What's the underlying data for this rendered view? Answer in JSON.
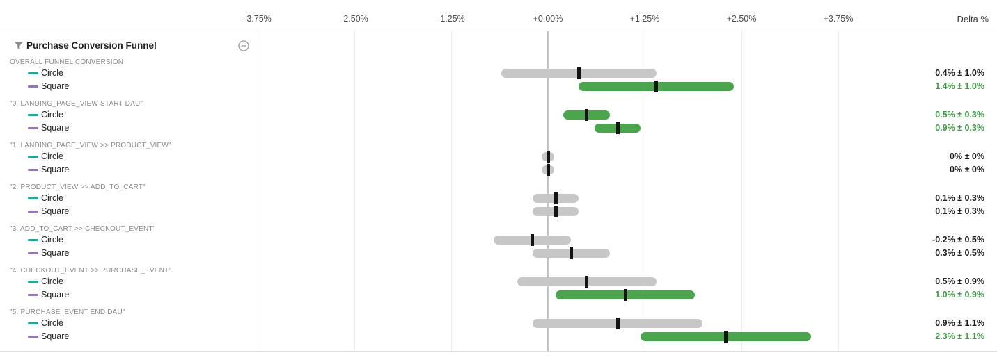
{
  "header": {
    "title": "Purchase Conversion Funnel",
    "filter_icon": "funnel-icon",
    "collapse_icon": "minus-circle-icon"
  },
  "axis": {
    "unit_label": "Delta %",
    "tick_labels": [
      "-3.75%",
      "-2.50%",
      "-1.25%",
      "+0.00%",
      "+1.25%",
      "+2.50%",
      "+3.75%"
    ],
    "tick_values": [
      -3.75,
      -2.5,
      -1.25,
      0,
      1.25,
      2.5,
      3.75
    ]
  },
  "colors": {
    "bar_significant": "#4aa54c",
    "bar_not_significant": "#c7c7c7",
    "point_tick": "#141414",
    "value_text": "#1c1c1c",
    "value_significant_text": "#3f9e44",
    "circle_swatch": "#1fa894",
    "square_swatch": "#9673c1",
    "gridline": "#ececec",
    "zero_line": "#c3c3c3"
  },
  "chart_data": {
    "type": "bar",
    "subtype": "horizontal_confidence_interval",
    "title": "Purchase Conversion Funnel",
    "xlabel": "Delta %",
    "xlim": [
      -3.75,
      3.75
    ],
    "x_tick_values": [
      -3.75,
      -2.5,
      -1.25,
      0,
      1.25,
      2.5,
      3.75
    ],
    "legend_position": "left",
    "grid": true,
    "groups": [
      {
        "metric": "OVERALL FUNNEL CONVERSION",
        "rows": [
          {
            "variant": "Circle",
            "delta_pct": 0.4,
            "error_pct": 1.0,
            "label": "0.4% ± 1.0%",
            "significant": false
          },
          {
            "variant": "Square",
            "delta_pct": 1.4,
            "error_pct": 1.0,
            "label": "1.4% ± 1.0%",
            "significant": true
          }
        ]
      },
      {
        "metric": "\"0. LANDING_PAGE_VIEW START DAU\"",
        "rows": [
          {
            "variant": "Circle",
            "delta_pct": 0.5,
            "error_pct": 0.3,
            "label": "0.5% ± 0.3%",
            "significant": true
          },
          {
            "variant": "Square",
            "delta_pct": 0.9,
            "error_pct": 0.3,
            "label": "0.9% ± 0.3%",
            "significant": true
          }
        ]
      },
      {
        "metric": "\"1. LANDING_PAGE_VIEW >> PRODUCT_VIEW\"",
        "rows": [
          {
            "variant": "Circle",
            "delta_pct": 0,
            "error_pct": 0,
            "label": "0% ± 0%",
            "significant": false
          },
          {
            "variant": "Square",
            "delta_pct": 0,
            "error_pct": 0,
            "label": "0% ± 0%",
            "significant": false
          }
        ]
      },
      {
        "metric": "\"2. PRODUCT_VIEW >> ADD_TO_CART\"",
        "rows": [
          {
            "variant": "Circle",
            "delta_pct": 0.1,
            "error_pct": 0.3,
            "label": "0.1% ± 0.3%",
            "significant": false
          },
          {
            "variant": "Square",
            "delta_pct": 0.1,
            "error_pct": 0.3,
            "label": "0.1% ± 0.3%",
            "significant": false
          }
        ]
      },
      {
        "metric": "\"3. ADD_TO_CART >> CHECKOUT_EVENT\"",
        "rows": [
          {
            "variant": "Circle",
            "delta_pct": -0.2,
            "error_pct": 0.5,
            "label": "-0.2% ± 0.5%",
            "significant": false
          },
          {
            "variant": "Square",
            "delta_pct": 0.3,
            "error_pct": 0.5,
            "label": "0.3% ± 0.5%",
            "significant": false
          }
        ]
      },
      {
        "metric": "\"4. CHECKOUT_EVENT >> PURCHASE_EVENT\"",
        "rows": [
          {
            "variant": "Circle",
            "delta_pct": 0.5,
            "error_pct": 0.9,
            "label": "0.5% ± 0.9%",
            "significant": false
          },
          {
            "variant": "Square",
            "delta_pct": 1.0,
            "error_pct": 0.9,
            "label": "1.0% ± 0.9%",
            "significant": true
          }
        ]
      },
      {
        "metric": "\"5. PURCHASE_EVENT END DAU\"",
        "rows": [
          {
            "variant": "Circle",
            "delta_pct": 0.9,
            "error_pct": 1.1,
            "label": "0.9% ± 1.1%",
            "significant": false
          },
          {
            "variant": "Square",
            "delta_pct": 2.3,
            "error_pct": 1.1,
            "label": "2.3% ± 1.1%",
            "significant": true
          }
        ]
      }
    ]
  }
}
